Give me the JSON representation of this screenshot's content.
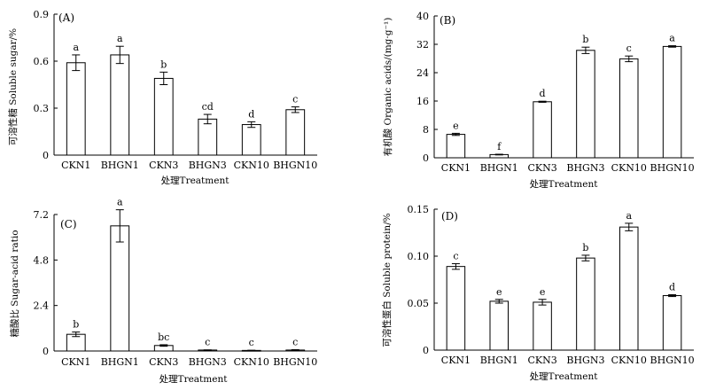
{
  "chart_data": [
    {
      "type": "bar",
      "panel_label": "(A)",
      "title": "",
      "xlabel": "处理Treatment",
      "ylabel": "可溶性糖 Soluble sugar/%",
      "categories": [
        "CKN1",
        "BHGN1",
        "CKN3",
        "BHGN3",
        "CKN10",
        "BHGN10"
      ],
      "values": [
        0.59,
        0.64,
        0.49,
        0.23,
        0.195,
        0.29
      ],
      "errors": [
        0.05,
        0.055,
        0.04,
        0.03,
        0.018,
        0.018
      ],
      "significance": [
        "a",
        "a",
        "b",
        "cd",
        "d",
        "c"
      ],
      "ylim": [
        0,
        0.9
      ],
      "yticks": [
        "0",
        "0.3",
        "0.6",
        "0.9"
      ],
      "grid": false,
      "bar_fill": "#ffffff",
      "bar_stroke": "#000000"
    },
    {
      "type": "bar",
      "panel_label": "(B)",
      "title": "",
      "xlabel": "处理Treatment",
      "ylabel": "有机酸 Organic acids/(mg·g⁻¹)",
      "categories": [
        "CKN1",
        "BHGN1",
        "CKN3",
        "BHGN3",
        "CKN10",
        "BHGN10"
      ],
      "values": [
        6.6,
        0.9,
        15.8,
        30.3,
        27.9,
        31.4
      ],
      "errors": [
        0.3,
        0.1,
        0.15,
        0.9,
        0.8,
        0.2
      ],
      "significance": [
        "e",
        "f",
        "d",
        "b",
        "c",
        "a"
      ],
      "ylim": [
        0,
        40
      ],
      "yticks": [
        "0",
        "8",
        "16",
        "24",
        "32",
        "40"
      ],
      "grid": false,
      "bar_fill": "#ffffff",
      "bar_stroke": "#000000"
    },
    {
      "type": "bar",
      "panel_label": "(C)",
      "title": "",
      "xlabel": "处理Treatment",
      "ylabel": "糖酸比 Sugar-acid ratio",
      "categories": [
        "CKN1",
        "BHGN1",
        "CKN3",
        "BHGN3",
        "CKN10",
        "BHGN10"
      ],
      "values": [
        0.88,
        6.6,
        0.29,
        0.05,
        0.03,
        0.05
      ],
      "errors": [
        0.12,
        0.85,
        0.04,
        0.01,
        0.01,
        0.02
      ],
      "significance": [
        "b",
        "a",
        "bc",
        "c",
        "c",
        "c"
      ],
      "ylim": [
        0,
        7.2
      ],
      "yticks": [
        "0",
        "2.4",
        "4.8",
        "7.2"
      ],
      "grid": false,
      "bar_fill": "#ffffff",
      "bar_stroke": "#000000"
    },
    {
      "type": "bar",
      "panel_label": "(D)",
      "title": "",
      "xlabel": "处理Treatment",
      "ylabel": "可溶性蛋白 Soluble protein/%",
      "categories": [
        "CKN1",
        "BHGN1",
        "CKN3",
        "BHGN3",
        "CKN10",
        "BHGN10"
      ],
      "values": [
        0.089,
        0.052,
        0.051,
        0.098,
        0.131,
        0.058
      ],
      "errors": [
        0.003,
        0.002,
        0.003,
        0.003,
        0.004,
        0.001
      ],
      "significance": [
        "c",
        "e",
        "e",
        "b",
        "a",
        "d"
      ],
      "ylim": [
        0,
        0.15
      ],
      "yticks": [
        "0",
        "0.05",
        "0.10",
        "0.15"
      ],
      "grid": false,
      "bar_fill": "#ffffff",
      "bar_stroke": "#000000"
    }
  ]
}
